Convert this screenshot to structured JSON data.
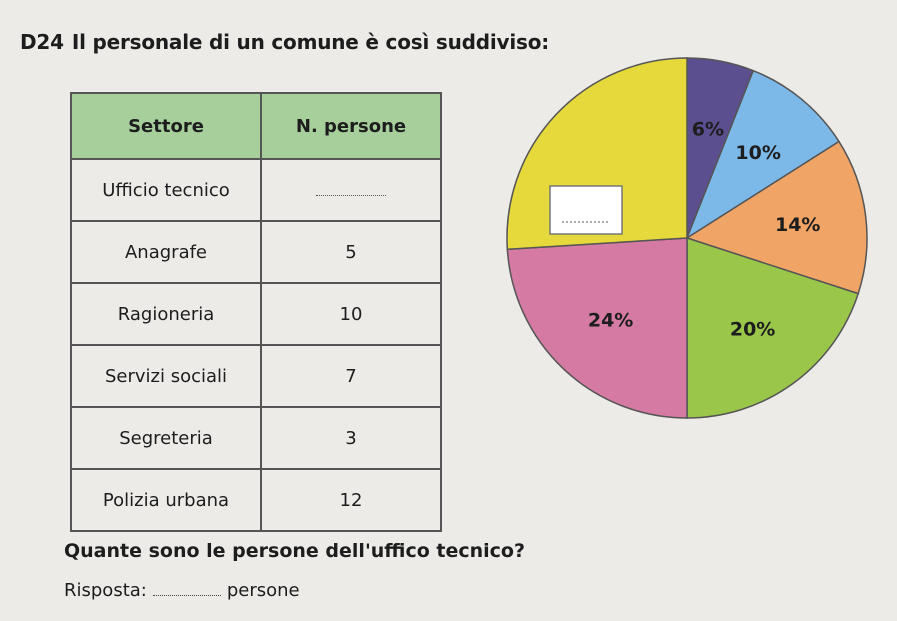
{
  "exercise": {
    "number": "D24",
    "statement": "Il personale di un comune è così suddiviso:"
  },
  "table": {
    "headers": [
      "Settore",
      "N. persone"
    ],
    "rows": [
      {
        "settore": "Ufficio tecnico",
        "persone": ""
      },
      {
        "settore": "Anagrafe",
        "persone": "5"
      },
      {
        "settore": "Ragioneria",
        "persone": "10"
      },
      {
        "settore": "Servizi sociali",
        "persone": "7"
      },
      {
        "settore": "Segreteria",
        "persone": "3"
      },
      {
        "settore": "Polizia urbana",
        "persone": "12"
      }
    ]
  },
  "chart_data": {
    "type": "pie",
    "slices": [
      {
        "label": "6%",
        "value": 6,
        "color": "#5b4f8f"
      },
      {
        "label": "10%",
        "value": 10,
        "color": "#7cb8e8"
      },
      {
        "label": "14%",
        "value": 14,
        "color": "#f0a466"
      },
      {
        "label": "20%",
        "value": 20,
        "color": "#9ac64a"
      },
      {
        "label": "24%",
        "value": 24,
        "color": "#d47aa3"
      },
      {
        "label": "",
        "value": 26,
        "color": "#e6d93c"
      }
    ],
    "start_angle_deg": -90
  },
  "question": "Quante sono le persone dell'uffico tecnico?",
  "answer": {
    "label": "Risposta:",
    "unit": "persone"
  }
}
